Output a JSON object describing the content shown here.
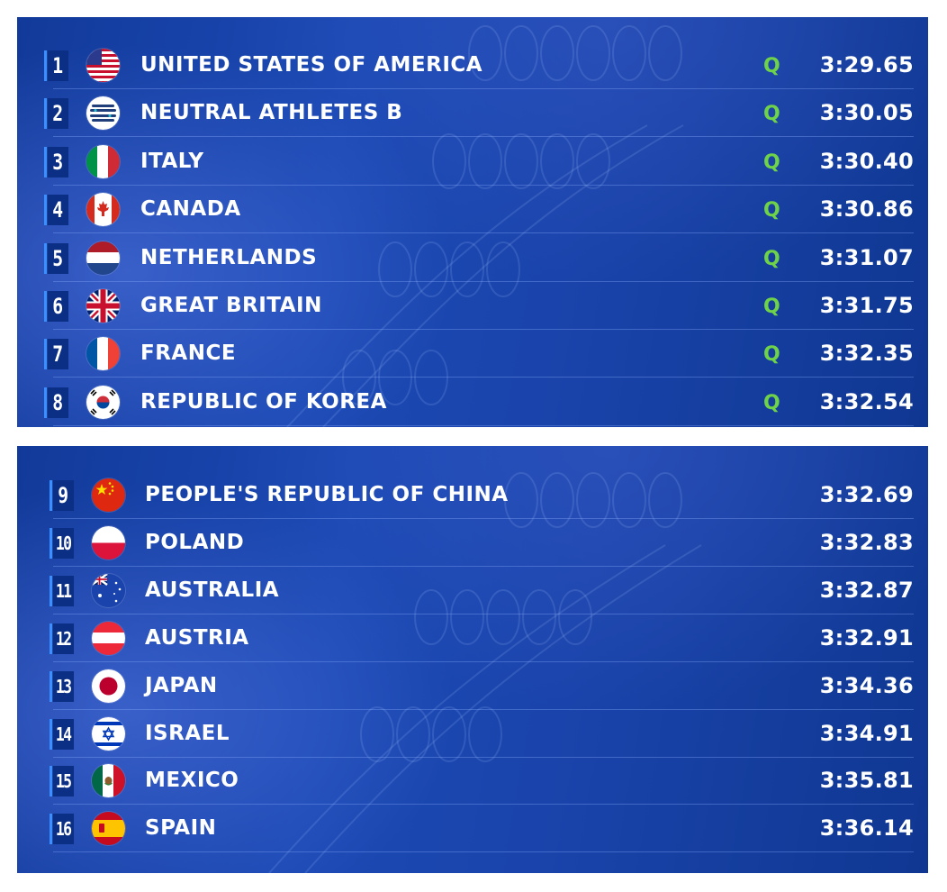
{
  "top_table": {
    "rows": [
      {
        "rank": "1",
        "flag": "usa-flag-icon",
        "country": "UNITED STATES OF AMERICA",
        "status": "Q",
        "time": "3:29.65"
      },
      {
        "rank": "2",
        "flag": "neutral-athletes-flag-icon",
        "country": "NEUTRAL ATHLETES B",
        "status": "Q",
        "time": "3:30.05"
      },
      {
        "rank": "3",
        "flag": "italy-flag-icon",
        "country": "ITALY",
        "status": "Q",
        "time": "3:30.40"
      },
      {
        "rank": "4",
        "flag": "canada-flag-icon",
        "country": "CANADA",
        "status": "Q",
        "time": "3:30.86"
      },
      {
        "rank": "5",
        "flag": "netherlands-flag-icon",
        "country": "NETHERLANDS",
        "status": "Q",
        "time": "3:31.07"
      },
      {
        "rank": "6",
        "flag": "great-britain-flag-icon",
        "country": "GREAT BRITAIN",
        "status": "Q",
        "time": "3:31.75"
      },
      {
        "rank": "7",
        "flag": "france-flag-icon",
        "country": "FRANCE",
        "status": "Q",
        "time": "3:32.35"
      },
      {
        "rank": "8",
        "flag": "korea-flag-icon",
        "country": "REPUBLIC OF KOREA",
        "status": "Q",
        "time": "3:32.54"
      }
    ]
  },
  "bottom_table": {
    "rows": [
      {
        "rank": "9",
        "flag": "china-flag-icon",
        "country": "PEOPLE'S REPUBLIC OF CHINA",
        "time": "3:32.69"
      },
      {
        "rank": "10",
        "flag": "poland-flag-icon",
        "country": "POLAND",
        "time": "3:32.83"
      },
      {
        "rank": "11",
        "flag": "australia-flag-icon",
        "country": "AUSTRALIA",
        "time": "3:32.87"
      },
      {
        "rank": "12",
        "flag": "austria-flag-icon",
        "country": "AUSTRIA",
        "time": "3:32.91"
      },
      {
        "rank": "13",
        "flag": "japan-flag-icon",
        "country": "JAPAN",
        "time": "3:34.36"
      },
      {
        "rank": "14",
        "flag": "israel-flag-icon",
        "country": "ISRAEL",
        "time": "3:34.91"
      },
      {
        "rank": "15",
        "flag": "mexico-flag-icon",
        "country": "MEXICO",
        "time": "3:35.81"
      },
      {
        "rank": "16",
        "flag": "spain-flag-icon",
        "country": "SPAIN",
        "time": "3:36.14"
      }
    ]
  },
  "colors": {
    "panel_blue": "#1b49b4",
    "rank_box": "#0c2f86",
    "rank_accent": "#3c8fff",
    "qualified_green": "#6fd34a",
    "text": "#ffffff"
  }
}
